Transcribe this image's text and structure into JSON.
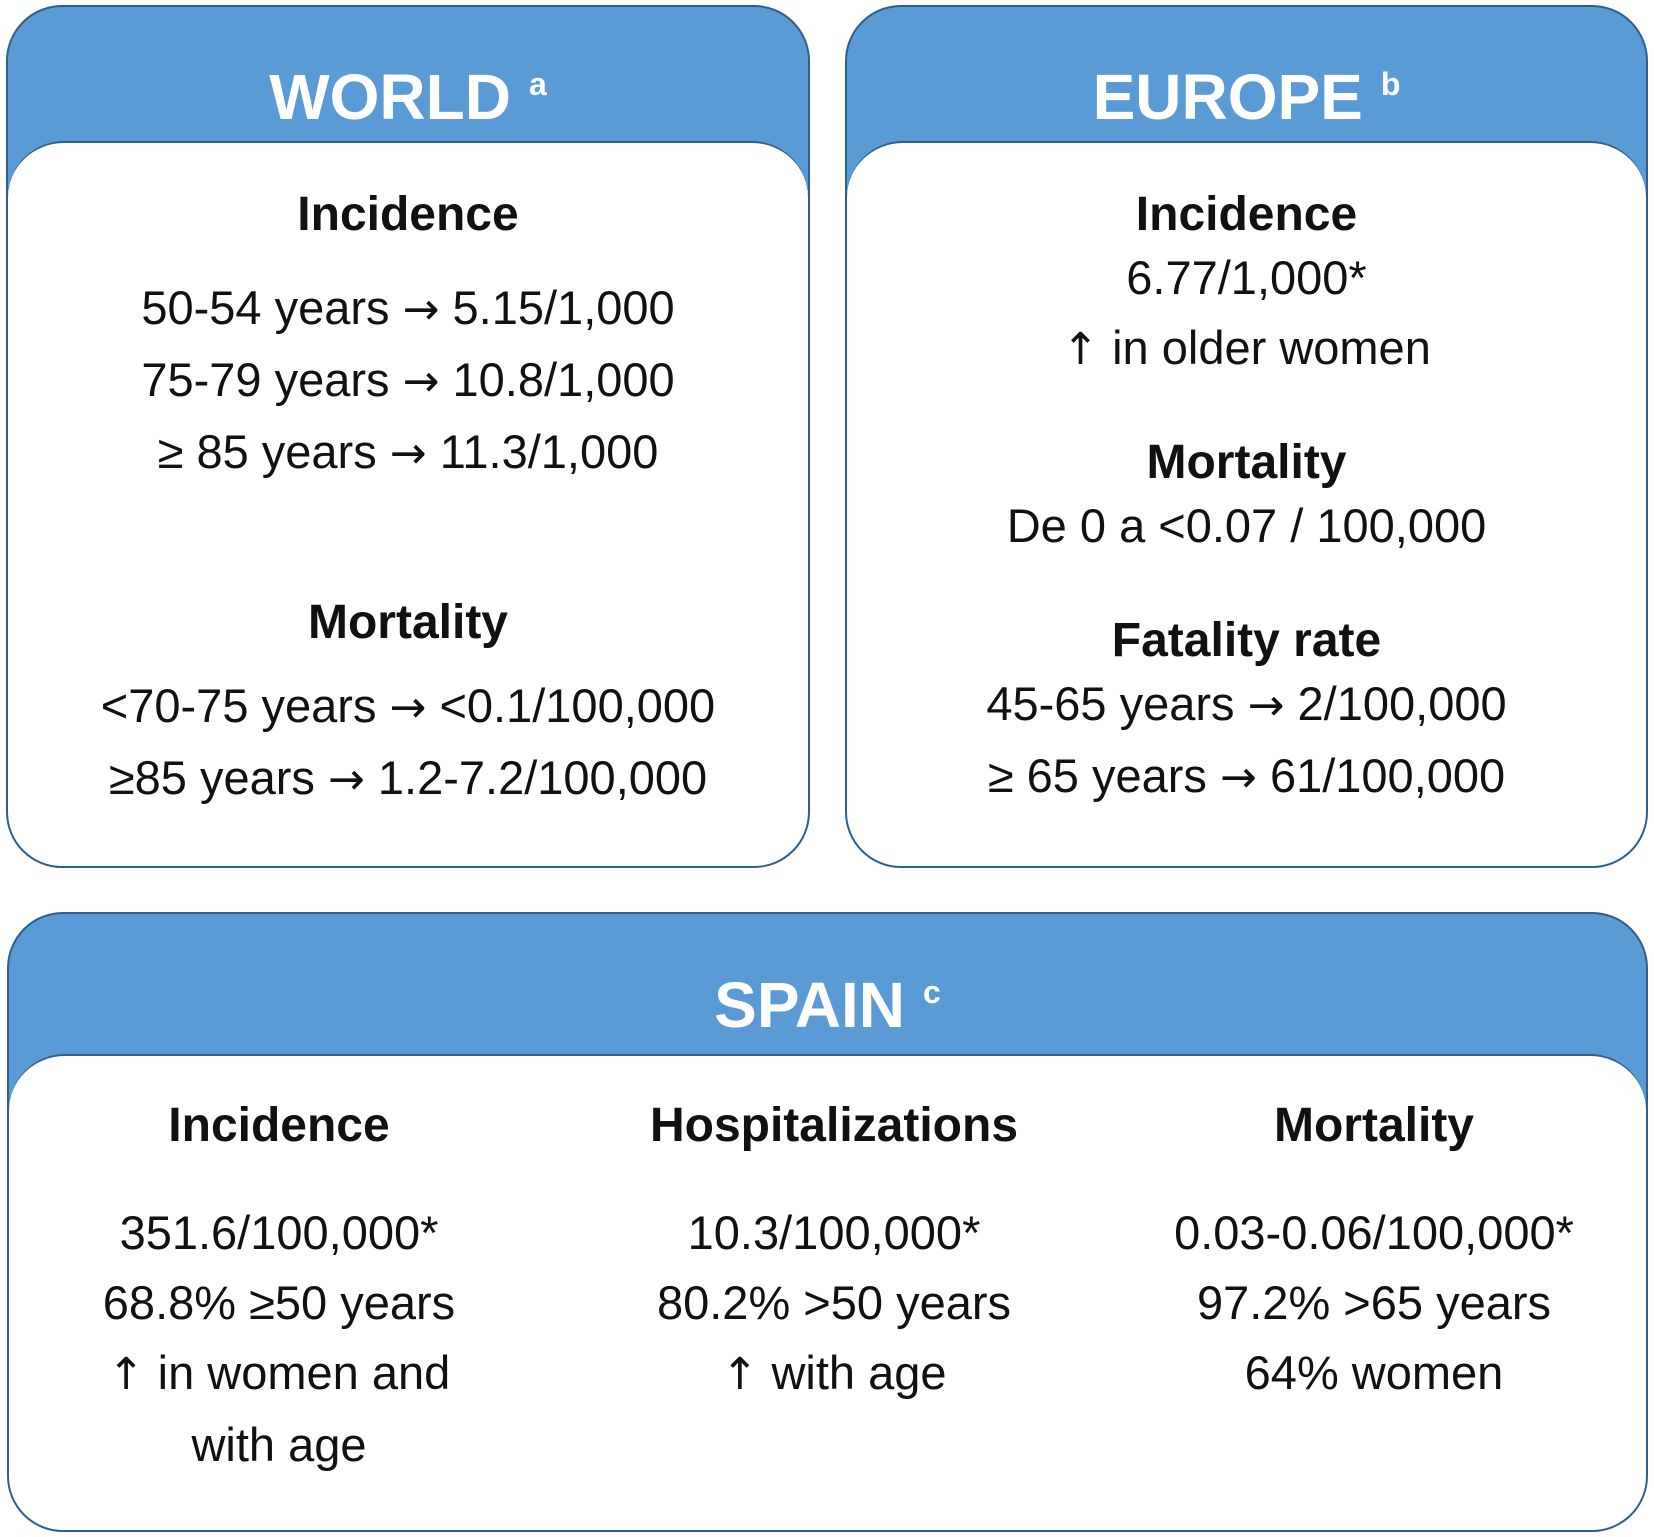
{
  "world": {
    "title": "WORLD",
    "sup": "a",
    "incidence": {
      "title": "Incidence",
      "rows": [
        {
          "age": "50-54 years",
          "value": "5.15/1,000"
        },
        {
          "age": "75-79 years",
          "value": "10.8/1,000"
        },
        {
          "age": "≥ 85 years",
          "value": "11.3/1,000"
        }
      ]
    },
    "mortality": {
      "title": "Mortality",
      "rows": [
        {
          "age": "<70-75 years",
          "value": "<0.1/100,000"
        },
        {
          "age": "≥85 years",
          "value": "1.2-7.2/100,000"
        }
      ]
    }
  },
  "europe": {
    "title": "EUROPE",
    "sup": "b",
    "incidence": {
      "title": "Incidence",
      "value": "6.77/1,000*",
      "note": "in older women"
    },
    "mortality": {
      "title": "Mortality",
      "value": "De 0 a <0.07 / 100,000"
    },
    "fatality": {
      "title": "Fatality rate",
      "rows": [
        {
          "age": "45-65 years",
          "value": "2/100,000"
        },
        {
          "age": "≥ 65 years",
          "value": "61/100,000"
        }
      ]
    }
  },
  "spain": {
    "title": "SPAIN",
    "sup": "c",
    "incidence": {
      "title": "Incidence",
      "line1": "351.6/100,000*",
      "line2": "68.8% ≥50 years",
      "line3": "in women and",
      "line4": "with age"
    },
    "hospitalizations": {
      "title": "Hospitalizations",
      "line1": "10.3/100,000*",
      "line2": "80.2% >50 years",
      "line3": "with age"
    },
    "mortality": {
      "title": "Mortality",
      "line1": "0.03-0.06/100,000*",
      "line2": "97.2% >65 years",
      "line3": "64% women"
    }
  },
  "glyphs": {
    "right_arrow": "→",
    "up_arrow": "↑"
  },
  "colors": {
    "header": "#5b9bd5",
    "border": "#2e5f8e",
    "header_text": "#ffffff",
    "body_text": "#111111"
  }
}
